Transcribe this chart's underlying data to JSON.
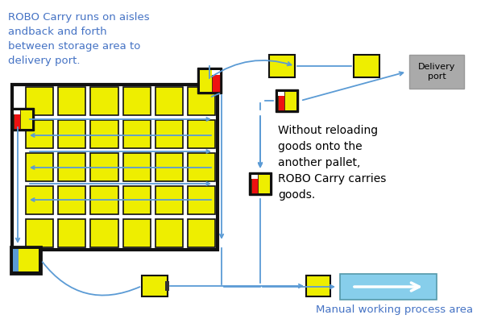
{
  "bg_color": "#ffffff",
  "fig_w": 6.02,
  "fig_h": 3.96,
  "dpi": 100,
  "arrow_color": "#5B9BD5",
  "robo_text": "ROBO Carry runs on aisles\nandback and forth\nbetween storage area to\ndelivery port.",
  "robo_text_color": "#4472C4",
  "middle_text": "Without reloading\ngoods onto the\nanother pallet,\nROBO Carry carries\ngoods.",
  "middle_text_color": "#000000",
  "manual_label": "Manual working process area",
  "manual_label_color": "#4472C4",
  "delivery_label": "Delivery\nport",
  "cell_color": "#EEEE00",
  "conveyor_color": "#87CEEB",
  "conveyor_arrow_color": "#ffffff"
}
